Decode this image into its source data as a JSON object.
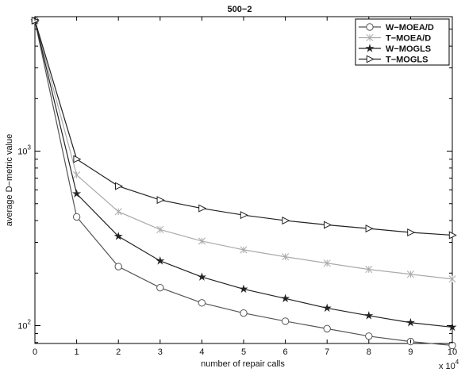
{
  "chart_data": {
    "type": "line",
    "title": "500−2",
    "xlabel": "number of repair calls",
    "ylabel": "average D−metric value",
    "x_multiplier_label": "x 10",
    "x_multiplier_exponent": "4",
    "x": [
      0,
      1,
      2,
      3,
      4,
      5,
      6,
      7,
      8,
      9,
      10
    ],
    "xticks": [
      "0",
      "1",
      "2",
      "3",
      "4",
      "5",
      "6",
      "7",
      "8",
      "9",
      "10"
    ],
    "y_scale": "log",
    "yticks": [
      {
        "value": 100,
        "base": "10",
        "exp": "2"
      },
      {
        "value": 1000,
        "base": "10",
        "exp": "3"
      }
    ],
    "xlim": [
      0,
      10
    ],
    "ylim": [
      79,
      5900
    ],
    "grid": false,
    "legend_position": "top-right",
    "series": [
      {
        "name": "W−MOEA/D",
        "marker": "circle",
        "color": "#555555",
        "values": [
          5600,
          420,
          218,
          165,
          135,
          118,
          106,
          96,
          87,
          81,
          77
        ]
      },
      {
        "name": "T−MOEA/D",
        "marker": "x",
        "color": "#aaaaaa",
        "values": [
          5600,
          730,
          450,
          355,
          305,
          272,
          248,
          228,
          210,
          197,
          185
        ]
      },
      {
        "name": "W−MOGLS",
        "marker": "star",
        "color": "#222222",
        "values": [
          5600,
          570,
          325,
          235,
          190,
          162,
          143,
          126,
          114,
          104,
          98
        ]
      },
      {
        "name": "T−MOGLS",
        "marker": "triangle-right",
        "color": "#222222",
        "values": [
          5600,
          900,
          630,
          525,
          470,
          430,
          400,
          378,
          360,
          342,
          330
        ]
      }
    ]
  }
}
